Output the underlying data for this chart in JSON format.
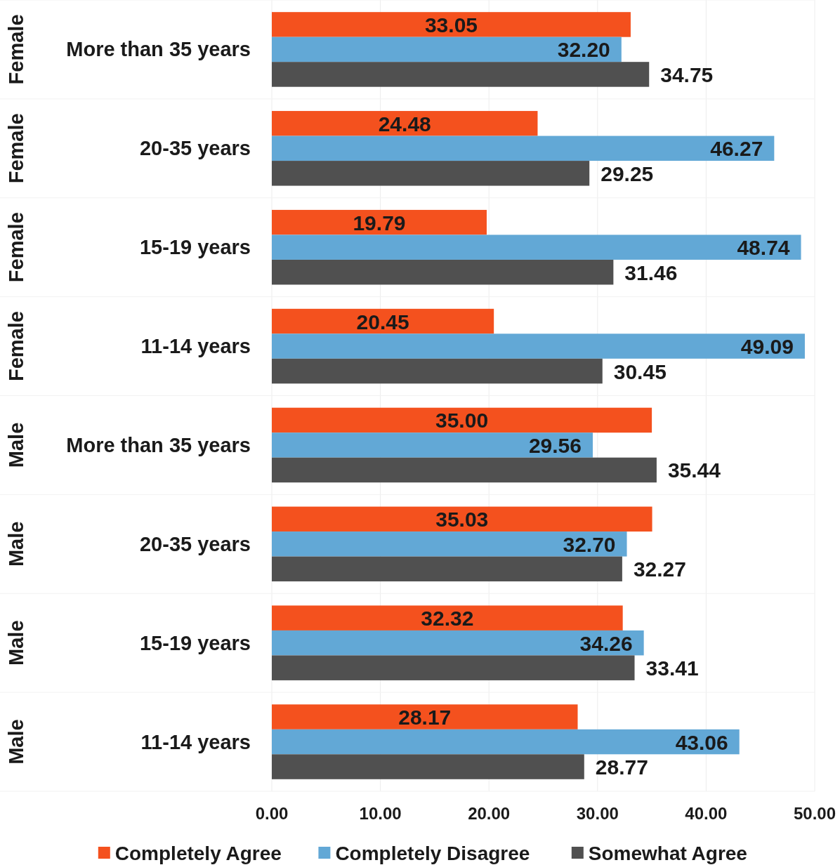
{
  "chart_data": {
    "type": "bar",
    "orientation": "horizontal",
    "categories": [
      "More than 35 years",
      "20-35 years",
      "15-19 years",
      "11-14 years",
      "More than 35 years",
      "20-35 years",
      "15-19 years",
      "11-14 years"
    ],
    "annotations": [
      "Female",
      "Female",
      "Female",
      "Female",
      "Male",
      "Male",
      "Male",
      "Male"
    ],
    "series": [
      {
        "name": "Completely Agree",
        "color": "#f4511e",
        "values": [
          33.05,
          24.48,
          19.79,
          20.45,
          35.0,
          35.03,
          32.32,
          28.17
        ],
        "value_labels": [
          "33.05",
          "24.48",
          "19.79",
          "20.45",
          "35.00",
          "35.03",
          "32.32",
          "28.17"
        ]
      },
      {
        "name": "Completely Disagree",
        "color": "#62a8d6",
        "values": [
          32.2,
          46.27,
          48.74,
          49.09,
          29.56,
          32.7,
          34.26,
          43.06
        ],
        "value_labels": [
          "32.20",
          "46.27",
          "48.74",
          "49.09",
          "29.56",
          "32.70",
          "34.26",
          "43.06"
        ]
      },
      {
        "name": "Somewhat Agree",
        "color": "#505050",
        "values": [
          34.75,
          29.25,
          31.46,
          30.45,
          35.44,
          32.27,
          33.41,
          28.77
        ],
        "value_labels": [
          "34.75",
          "29.25",
          "31.46",
          "30.45",
          "35.44",
          "32.27",
          "33.41",
          "28.77"
        ]
      }
    ],
    "xlim": [
      0,
      50
    ],
    "xticks": [
      {
        "value": 0,
        "label": "0.00"
      },
      {
        "value": 10,
        "label": "10.00"
      },
      {
        "value": 20,
        "label": "20.00"
      },
      {
        "value": 30,
        "label": "30.00"
      },
      {
        "value": 40,
        "label": "40.00"
      },
      {
        "value": 50,
        "label": "50.00"
      }
    ],
    "grid": "x",
    "legend": "bottom"
  }
}
